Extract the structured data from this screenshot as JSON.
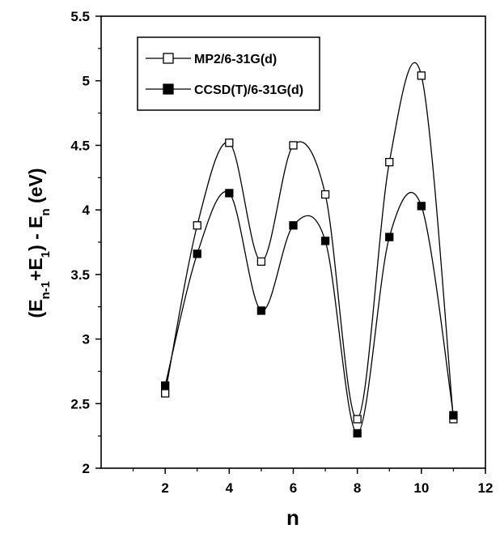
{
  "chart_data": {
    "type": "line",
    "xlabel": "n",
    "ylabel": {
      "parts": [
        {
          "text": "(E"
        },
        {
          "text": "n-1",
          "sub": true
        },
        {
          "text": "+E"
        },
        {
          "text": "1",
          "sub": true
        },
        {
          "text": ") - E"
        },
        {
          "text": "n",
          "sub": true
        },
        {
          "text": " (eV)"
        }
      ]
    },
    "xlim": [
      0,
      12
    ],
    "ylim": [
      2,
      5.5
    ],
    "xticks": [
      2,
      4,
      6,
      8,
      10,
      12
    ],
    "yticks": [
      2,
      2.5,
      3,
      3.5,
      4,
      4.5,
      5,
      5.5
    ],
    "grid": false,
    "legend_position": "top-left",
    "smoothed": true,
    "series": [
      {
        "name": "MP2/6-31G(d)",
        "marker": "open-square",
        "x": [
          2,
          3,
          4,
          5,
          6,
          7,
          8,
          9,
          10,
          11
        ],
        "y": [
          2.58,
          3.88,
          4.52,
          3.6,
          4.5,
          4.12,
          2.38,
          4.37,
          5.04,
          2.38
        ]
      },
      {
        "name": "CCSD(T)/6-31G(d)",
        "marker": "filled-square",
        "x": [
          2,
          3,
          4,
          5,
          6,
          7,
          8,
          9,
          10,
          11
        ],
        "y": [
          2.64,
          3.66,
          4.13,
          3.22,
          3.88,
          3.76,
          2.27,
          3.79,
          4.03,
          2.41
        ]
      }
    ]
  }
}
